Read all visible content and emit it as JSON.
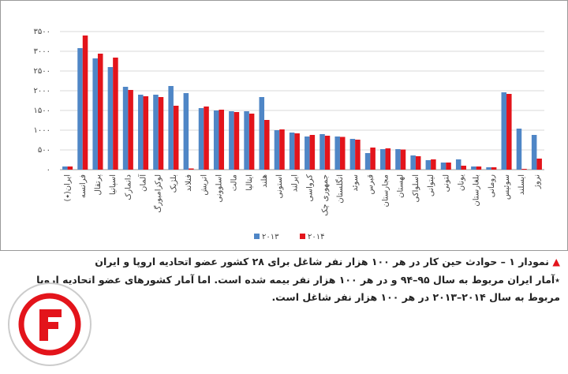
{
  "chart_data": {
    "type": "bar",
    "title": "نمودار ۱ – حوادث حین کار در هر ۱۰۰ هزار نفر شاغل برای ۲۸ کشور عضو اتحادیه اروپا و ایران",
    "note": "٭آمار ایران مربوط به سال ۹۵–۹۴ و در هر ۱۰۰ هزار نفر بیمه شده است. اما آمار کشورهای عضو اتحادیه اروپا مربوط به سال ۲۰۱۴–۲۰۱۳ در هر ۱۰۰ هزار نفر شاغل است.",
    "categories": [
      "ایران(٭)",
      "فرانسه",
      "پرتقال",
      "اسپانیا",
      "دانمارک",
      "آلمان",
      "لوکزامبورگ",
      "بلژیک",
      "فنلاند",
      "اتریش",
      "اسلوونی",
      "مالت",
      "ایتالیا",
      "هلند",
      "استونی",
      "ایرلند",
      "کرواسی",
      "جمهوری چک",
      "انگلستان",
      "سوئد",
      "قبرس",
      "مجارستان",
      "لهستان",
      "اسلواکی",
      "لیتوانی",
      "لتونی",
      "یونان",
      "بلغارستان",
      "رومانی",
      "سوئیس",
      "ایسلند",
      "نروژ"
    ],
    "series": [
      {
        "name": "۲۰۱۳",
        "color": "#4f86c6",
        "values": [
          80,
          3080,
          2820,
          2600,
          2100,
          1900,
          1900,
          2120,
          1940,
          1560,
          1500,
          1480,
          1480,
          1840,
          1000,
          940,
          840,
          900,
          840,
          780,
          420,
          520,
          520,
          360,
          240,
          180,
          260,
          80,
          60,
          1960,
          1040,
          880
        ]
      },
      {
        "name": "۲۰۱۴",
        "color": "#e3141b",
        "values": [
          80,
          3400,
          2940,
          2840,
          2020,
          1860,
          1840,
          1620,
          30,
          1600,
          1520,
          1460,
          1420,
          1260,
          1020,
          920,
          880,
          860,
          830,
          760,
          560,
          540,
          510,
          340,
          260,
          180,
          100,
          80,
          60,
          1920,
          20,
          280
        ]
      }
    ],
    "ylim": [
      0,
      3500
    ],
    "yticks": [
      {
        "value": 0,
        "label": "۰"
      },
      {
        "value": 500,
        "label": "۵۰۰"
      },
      {
        "value": 1000,
        "label": "۱۰۰۰"
      },
      {
        "value": 1500,
        "label": "۱۵۰۰"
      },
      {
        "value": 2000,
        "label": "۲۰۰۰"
      },
      {
        "value": 2500,
        "label": "۲۵۰۰"
      },
      {
        "value": 3000,
        "label": "۳۰۰۰"
      },
      {
        "value": 3500,
        "label": "۳۵۰۰"
      }
    ],
    "grid": true
  }
}
